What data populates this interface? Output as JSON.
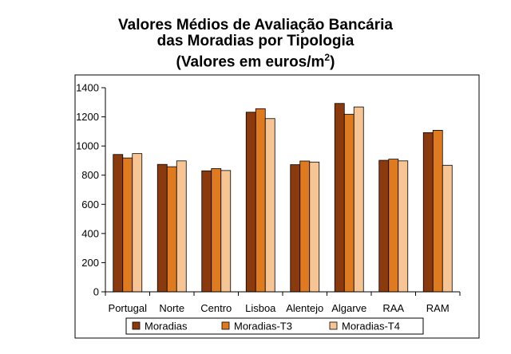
{
  "chart_data": {
    "type": "bar",
    "title_lines": [
      "Valores Médios de Avaliação Bancária",
      "das Moradias por Tipologia"
    ],
    "title_units_prefix": "(Valores em euros/m",
    "title_units_sup": "2",
    "title_units_suffix": ")",
    "categories": [
      "Portugal",
      "Norte",
      "Centro",
      "Lisboa",
      "Alentejo",
      "Algarve",
      "RAA",
      "RAM"
    ],
    "series": [
      {
        "name": "Moradias",
        "color": "#8B3A0E",
        "values": [
          942,
          874,
          830,
          1232,
          872,
          1292,
          902,
          1092
        ]
      },
      {
        "name": "Moradias-T3",
        "color": "#E07A1F",
        "values": [
          918,
          858,
          845,
          1256,
          897,
          1218,
          910,
          1108
        ]
      },
      {
        "name": "Moradias-T4",
        "color": "#F7C493",
        "values": [
          948,
          898,
          832,
          1188,
          890,
          1268,
          898,
          868
        ]
      }
    ],
    "ylim": [
      0,
      1400
    ],
    "yticks": [
      0,
      200,
      400,
      600,
      800,
      1000,
      1200,
      1400
    ],
    "grid": false,
    "legend_position": "bottom"
  }
}
